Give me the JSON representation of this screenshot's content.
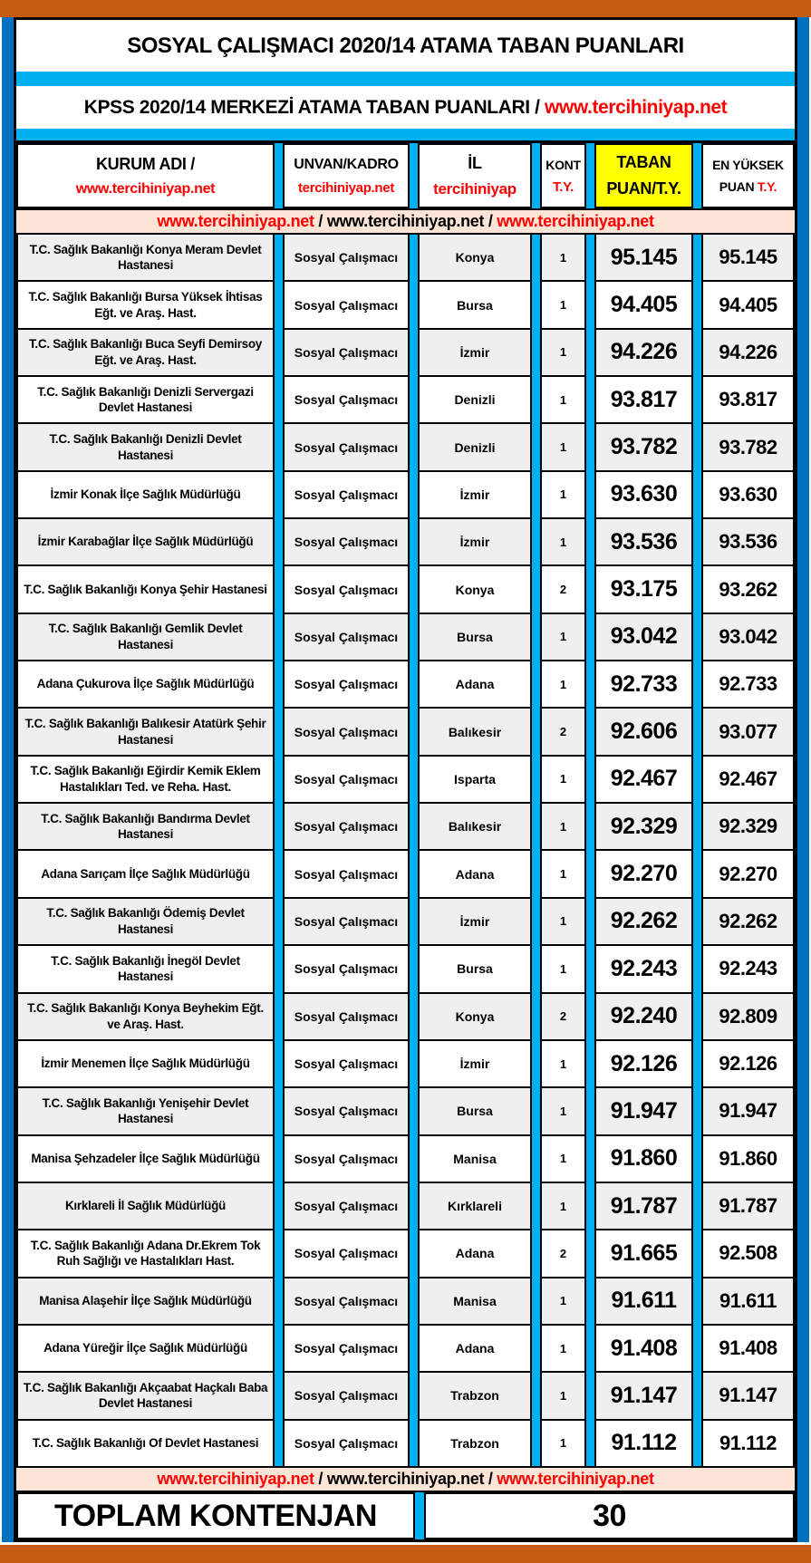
{
  "title": "SOSYAL ÇALIŞMACI 2020/14 ATAMA TABAN PUANLARI",
  "subtitle": {
    "text_black": "KPSS 2020/14 MERKEZİ ATAMA TABAN PUANLARI / ",
    "link_red": "www.tercihiniyap.net"
  },
  "header": {
    "kurum_line1": "KURUM ADI /",
    "kurum_line2": "www.tercihiniyap.net",
    "unvan_line1": "UNVAN/KADRO",
    "unvan_line2": "tercihiniyap.net",
    "il_line1": "İL",
    "il_line2": "tercihiniyap",
    "kont_line1": "KONT",
    "kont_line2": "T.Y.",
    "taban_line1": "TABAN",
    "taban_line2": "PUAN/T.Y.",
    "yuksek_line1": "EN YÜKSEK",
    "yuksek_line2_black": "PUAN ",
    "yuksek_line2_red": "T.Y."
  },
  "separator": {
    "url_red_1": "www.tercihiniyap.net",
    "slash_1": " / ",
    "url_black": "www.tercihiniyap.net",
    "slash_2": " / ",
    "url_red_2": "www.tercihiniyap.net"
  },
  "rows": [
    {
      "kurum": "T.C. Sağlık Bakanlığı Konya Meram Devlet Hastanesi",
      "unvan": "Sosyal Çalışmacı",
      "il": "Konya",
      "kont": "1",
      "taban": "95.145",
      "yuksek": "95.145"
    },
    {
      "kurum": "T.C. Sağlık Bakanlığı Bursa Yüksek İhtisas Eğt. ve Araş. Hast.",
      "unvan": "Sosyal Çalışmacı",
      "il": "Bursa",
      "kont": "1",
      "taban": "94.405",
      "yuksek": "94.405"
    },
    {
      "kurum": "T.C. Sağlık Bakanlığı Buca Seyfi Demirsoy Eğt. ve Araş. Hast.",
      "unvan": "Sosyal Çalışmacı",
      "il": "İzmir",
      "kont": "1",
      "taban": "94.226",
      "yuksek": "94.226"
    },
    {
      "kurum": "T.C. Sağlık Bakanlığı Denizli Servergazi Devlet Hastanesi",
      "unvan": "Sosyal Çalışmacı",
      "il": "Denizli",
      "kont": "1",
      "taban": "93.817",
      "yuksek": "93.817"
    },
    {
      "kurum": "T.C. Sağlık Bakanlığı Denizli Devlet Hastanesi",
      "unvan": "Sosyal Çalışmacı",
      "il": "Denizli",
      "kont": "1",
      "taban": "93.782",
      "yuksek": "93.782"
    },
    {
      "kurum": "İzmir Konak İlçe Sağlık Müdürlüğü",
      "unvan": "Sosyal Çalışmacı",
      "il": "İzmir",
      "kont": "1",
      "taban": "93.630",
      "yuksek": "93.630"
    },
    {
      "kurum": "İzmir Karabağlar İlçe Sağlık Müdürlüğü",
      "unvan": "Sosyal Çalışmacı",
      "il": "İzmir",
      "kont": "1",
      "taban": "93.536",
      "yuksek": "93.536"
    },
    {
      "kurum": "T.C. Sağlık Bakanlığı Konya Şehir Hastanesi",
      "unvan": "Sosyal Çalışmacı",
      "il": "Konya",
      "kont": "2",
      "taban": "93.175",
      "yuksek": "93.262"
    },
    {
      "kurum": "T.C. Sağlık Bakanlığı Gemlik Devlet Hastanesi",
      "unvan": "Sosyal Çalışmacı",
      "il": "Bursa",
      "kont": "1",
      "taban": "93.042",
      "yuksek": "93.042"
    },
    {
      "kurum": "Adana Çukurova İlçe Sağlık Müdürlüğü",
      "unvan": "Sosyal Çalışmacı",
      "il": "Adana",
      "kont": "1",
      "taban": "92.733",
      "yuksek": "92.733"
    },
    {
      "kurum": "T.C. Sağlık Bakanlığı Balıkesir Atatürk Şehir Hastanesi",
      "unvan": "Sosyal Çalışmacı",
      "il": "Balıkesir",
      "kont": "2",
      "taban": "92.606",
      "yuksek": "93.077"
    },
    {
      "kurum": "T.C. Sağlık Bakanlığı Eğirdir Kemik Eklem Hastalıkları Ted. ve Reha. Hast.",
      "unvan": "Sosyal Çalışmacı",
      "il": "Isparta",
      "kont": "1",
      "taban": "92.467",
      "yuksek": "92.467"
    },
    {
      "kurum": "T.C. Sağlık Bakanlığı Bandırma Devlet Hastanesi",
      "unvan": "Sosyal Çalışmacı",
      "il": "Balıkesir",
      "kont": "1",
      "taban": "92.329",
      "yuksek": "92.329"
    },
    {
      "kurum": "Adana Sarıçam İlçe Sağlık Müdürlüğü",
      "unvan": "Sosyal Çalışmacı",
      "il": "Adana",
      "kont": "1",
      "taban": "92.270",
      "yuksek": "92.270"
    },
    {
      "kurum": "T.C. Sağlık Bakanlığı Ödemiş Devlet Hastanesi",
      "unvan": "Sosyal Çalışmacı",
      "il": "İzmir",
      "kont": "1",
      "taban": "92.262",
      "yuksek": "92.262"
    },
    {
      "kurum": "T.C. Sağlık Bakanlığı İnegöl Devlet Hastanesi",
      "unvan": "Sosyal Çalışmacı",
      "il": "Bursa",
      "kont": "1",
      "taban": "92.243",
      "yuksek": "92.243"
    },
    {
      "kurum": "T.C. Sağlık Bakanlığı Konya Beyhekim Eğt. ve Araş. Hast.",
      "unvan": "Sosyal Çalışmacı",
      "il": "Konya",
      "kont": "2",
      "taban": "92.240",
      "yuksek": "92.809"
    },
    {
      "kurum": "İzmir Menemen İlçe Sağlık Müdürlüğü",
      "unvan": "Sosyal Çalışmacı",
      "il": "İzmir",
      "kont": "1",
      "taban": "92.126",
      "yuksek": "92.126"
    },
    {
      "kurum": "T.C. Sağlık Bakanlığı Yenişehir Devlet Hastanesi",
      "unvan": "Sosyal Çalışmacı",
      "il": "Bursa",
      "kont": "1",
      "taban": "91.947",
      "yuksek": "91.947"
    },
    {
      "kurum": "Manisa Şehzadeler İlçe Sağlık Müdürlüğü",
      "unvan": "Sosyal Çalışmacı",
      "il": "Manisa",
      "kont": "1",
      "taban": "91.860",
      "yuksek": "91.860"
    },
    {
      "kurum": "Kırklareli İl Sağlık Müdürlüğü",
      "unvan": "Sosyal Çalışmacı",
      "il": "Kırklareli",
      "kont": "1",
      "taban": "91.787",
      "yuksek": "91.787"
    },
    {
      "kurum": "T.C. Sağlık Bakanlığı Adana Dr.Ekrem Tok Ruh Sağlığı ve Hastalıkları Hast.",
      "unvan": "Sosyal Çalışmacı",
      "il": "Adana",
      "kont": "2",
      "taban": "91.665",
      "yuksek": "92.508"
    },
    {
      "kurum": "Manisa Alaşehir İlçe Sağlık Müdürlüğü",
      "unvan": "Sosyal Çalışmacı",
      "il": "Manisa",
      "kont": "1",
      "taban": "91.611",
      "yuksek": "91.611"
    },
    {
      "kurum": "Adana Yüreğir İlçe Sağlık Müdürlüğü",
      "unvan": "Sosyal Çalışmacı",
      "il": "Adana",
      "kont": "1",
      "taban": "91.408",
      "yuksek": "91.408"
    },
    {
      "kurum": "T.C. Sağlık Bakanlığı Akçaabat Haçkalı Baba Devlet Hastanesi",
      "unvan": "Sosyal Çalışmacı",
      "il": "Trabzon",
      "kont": "1",
      "taban": "91.147",
      "yuksek": "91.147"
    },
    {
      "kurum": "T.C. Sağlık Bakanlığı Of Devlet Hastanesi",
      "unvan": "Sosyal Çalışmacı",
      "il": "Trabzon",
      "kont": "1",
      "taban": "91.112",
      "yuksek": "91.112"
    }
  ],
  "footer": {
    "label": "TOPLAM KONTENJAN",
    "total": "30"
  },
  "colors": {
    "brown_bar": "#C55A11",
    "blue_side": "#0070C0",
    "cyan_divider": "#00B0F0",
    "pink_band": "#FCE4D6",
    "yellow_header_cell": "#FFFF00",
    "red_text": "#FF0000",
    "row_alternate": "#EFEFEF"
  }
}
